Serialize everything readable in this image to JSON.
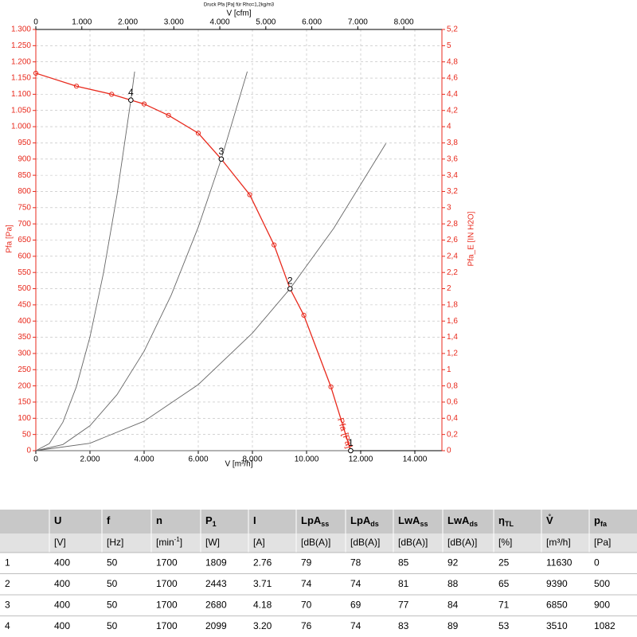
{
  "chart_data": {
    "type": "line",
    "title": "Druck Pfa [Pa] für Rho=1,2kg/m3",
    "x_label": "V [m³/h]",
    "x2_label": "V [cfm]",
    "y_label": "Pfa [Pa]",
    "y2_label": "Pfa_E [IN H2O]",
    "xlim": [
      0,
      15000
    ],
    "xticks": [
      0,
      {
        "value": 2000,
        "label": "2.000"
      },
      {
        "value": 4000,
        "label": "4.000"
      },
      {
        "value": 6000,
        "label": "6.000"
      },
      {
        "value": 8000,
        "label": "8.000"
      },
      {
        "value": 10000,
        "label": "10.000"
      },
      {
        "value": 12000,
        "label": "12.000"
      },
      {
        "value": 14000,
        "label": "14.000"
      }
    ],
    "x2lim": [
      0,
      8829
    ],
    "x2ticks": [
      0,
      {
        "value": 1000,
        "label": "1.000"
      },
      {
        "value": 2000,
        "label": "2.000"
      },
      {
        "value": 3000,
        "label": "3.000"
      },
      {
        "value": 4000,
        "label": "4.000"
      },
      {
        "value": 5000,
        "label": "5.000"
      },
      {
        "value": 6000,
        "label": "6.000"
      },
      {
        "value": 7000,
        "label": "7.000"
      },
      {
        "value": 8000,
        "label": "8.000"
      }
    ],
    "ylim": [
      0,
      1300
    ],
    "yticks": [
      0,
      50,
      100,
      150,
      200,
      250,
      300,
      350,
      400,
      450,
      500,
      550,
      600,
      650,
      700,
      750,
      800,
      850,
      900,
      950,
      {
        "value": 1000,
        "label": "1.000"
      },
      {
        "value": 1050,
        "label": "1.050"
      },
      {
        "value": 1100,
        "label": "1.100"
      },
      {
        "value": 1150,
        "label": "1.150"
      },
      {
        "value": 1200,
        "label": "1.200"
      },
      {
        "value": 1250,
        "label": "1.250"
      },
      {
        "value": 1300,
        "label": "1.300"
      }
    ],
    "y2lim": [
      0,
      5.2
    ],
    "y2ticks": [
      0,
      {
        "value": 0.2,
        "label": "0,2"
      },
      {
        "value": 0.4,
        "label": "0,4"
      },
      {
        "value": 0.6,
        "label": "0,6"
      },
      {
        "value": 0.8,
        "label": "0,8"
      },
      1,
      {
        "value": 1.2,
        "label": "1,2"
      },
      {
        "value": 1.4,
        "label": "1,4"
      },
      {
        "value": 1.6,
        "label": "1,6"
      },
      {
        "value": 1.8,
        "label": "1,8"
      },
      2,
      {
        "value": 2.2,
        "label": "2,2"
      },
      {
        "value": 2.4,
        "label": "2,4"
      },
      {
        "value": 2.6,
        "label": "2,6"
      },
      {
        "value": 2.8,
        "label": "2,8"
      },
      3,
      {
        "value": 3.2,
        "label": "3,2"
      },
      {
        "value": 3.4,
        "label": "3,4"
      },
      {
        "value": 3.6,
        "label": "3,6"
      },
      {
        "value": 3.8,
        "label": "3,8"
      },
      4,
      {
        "value": 4.2,
        "label": "4,2"
      },
      {
        "value": 4.4,
        "label": "4,4"
      },
      {
        "value": 4.6,
        "label": "4,6"
      },
      {
        "value": 4.8,
        "label": "4,8"
      },
      5,
      {
        "value": 5.2,
        "label": "5,2"
      }
    ],
    "grid": true,
    "series": [
      {
        "name": "Pfa [Pa]",
        "color": "#e8291c",
        "x": [
          0,
          1500,
          2800,
          3510,
          4000,
          4900,
          6000,
          6850,
          7900,
          8800,
          9390,
          9900,
          10900,
          11630
        ],
        "values": [
          1165,
          1125,
          1100,
          1082,
          1070,
          1035,
          980,
          900,
          790,
          635,
          500,
          418,
          197,
          0
        ]
      }
    ],
    "system_curves": [
      {
        "color": "#666666",
        "x": [
          0,
          500,
          1000,
          1500,
          2000,
          2500,
          3000,
          3510,
          3650
        ],
        "values": [
          0,
          22,
          88,
          198,
          351,
          549,
          790,
          1082,
          1170
        ]
      },
      {
        "color": "#666666",
        "x": [
          0,
          1000,
          2000,
          3000,
          4000,
          5000,
          6000,
          6850,
          7810
        ],
        "values": [
          0,
          19,
          77,
          173,
          307,
          480,
          690,
          900,
          1170
        ]
      },
      {
        "color": "#666666",
        "x": [
          0,
          2000,
          4000,
          6000,
          8000,
          9390,
          11000,
          12930
        ],
        "values": [
          0,
          23,
          91,
          204,
          363,
          500,
          686,
          948
        ]
      },
      {
        "color": "#666666",
        "x": [
          0,
          11630
        ],
        "values": [
          0,
          0
        ]
      }
    ],
    "operating_points": {
      "labels": [
        "1",
        "2",
        "3",
        "4"
      ],
      "x": [
        11630,
        9390,
        6850,
        3510
      ],
      "values": [
        0,
        500,
        900,
        1082
      ]
    }
  },
  "table": {
    "header": [
      {
        "text": "U"
      },
      {
        "text": "f"
      },
      {
        "text": "n"
      },
      {
        "text": "P",
        "sub": "1"
      },
      {
        "text": "I"
      },
      {
        "text": "LpA",
        "sub": "ss"
      },
      {
        "text": "LpA",
        "sub": "ds"
      },
      {
        "text": "LwA",
        "sub": "ss"
      },
      {
        "text": "LwA",
        "sub": "ds"
      },
      {
        "text": "η",
        "sub": "TL"
      },
      {
        "text": "V̊"
      },
      {
        "text": "p",
        "sub": "fa"
      }
    ],
    "units": [
      {
        "text": "[V]"
      },
      {
        "text": "[Hz]"
      },
      {
        "text": "[min",
        "sup": "-1",
        "tail": "]"
      },
      {
        "text": "[W]"
      },
      {
        "text": "[A]"
      },
      {
        "text": "[dB(A)]"
      },
      {
        "text": "[dB(A)]"
      },
      {
        "text": "[dB(A)]"
      },
      {
        "text": "[dB(A)]"
      },
      {
        "text": "[%]"
      },
      {
        "text": "[m³/h]"
      },
      {
        "text": "[Pa]"
      }
    ],
    "rows": [
      [
        "1",
        "400",
        "50",
        "1700",
        "1809",
        "2.76",
        "79",
        "78",
        "85",
        "92",
        "25",
        "11630",
        "0"
      ],
      [
        "2",
        "400",
        "50",
        "1700",
        "2443",
        "3.71",
        "74",
        "74",
        "81",
        "88",
        "65",
        "9390",
        "500"
      ],
      [
        "3",
        "400",
        "50",
        "1700",
        "2680",
        "4.18",
        "70",
        "69",
        "77",
        "84",
        "71",
        "6850",
        "900"
      ],
      [
        "4",
        "400",
        "50",
        "1700",
        "2099",
        "3.20",
        "76",
        "74",
        "83",
        "89",
        "53",
        "3510",
        "1082"
      ]
    ]
  }
}
